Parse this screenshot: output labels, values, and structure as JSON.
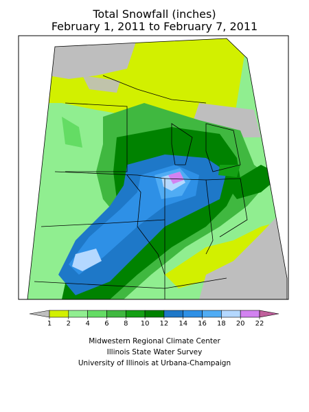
{
  "title": "Total Snowfall (inches)",
  "subtitle": "February 1, 2011 to February 7, 2011",
  "legend": {
    "boundaries": [
      1,
      2,
      4,
      6,
      8,
      10,
      12,
      14,
      16,
      18,
      20,
      22
    ],
    "colors": [
      "#bebebe",
      "#d2f000",
      "#90ee90",
      "#64dc64",
      "#40b840",
      "#14a014",
      "#008200",
      "#1e78c8",
      "#2e90e6",
      "#50acf4",
      "#b4d8ff",
      "#d282f0",
      "#c0609c"
    ]
  },
  "credits": [
    "Midwestern Regional Climate Center",
    "Illinois State Water Survey",
    "University of Illinois at Urbana-Champaign"
  ]
}
